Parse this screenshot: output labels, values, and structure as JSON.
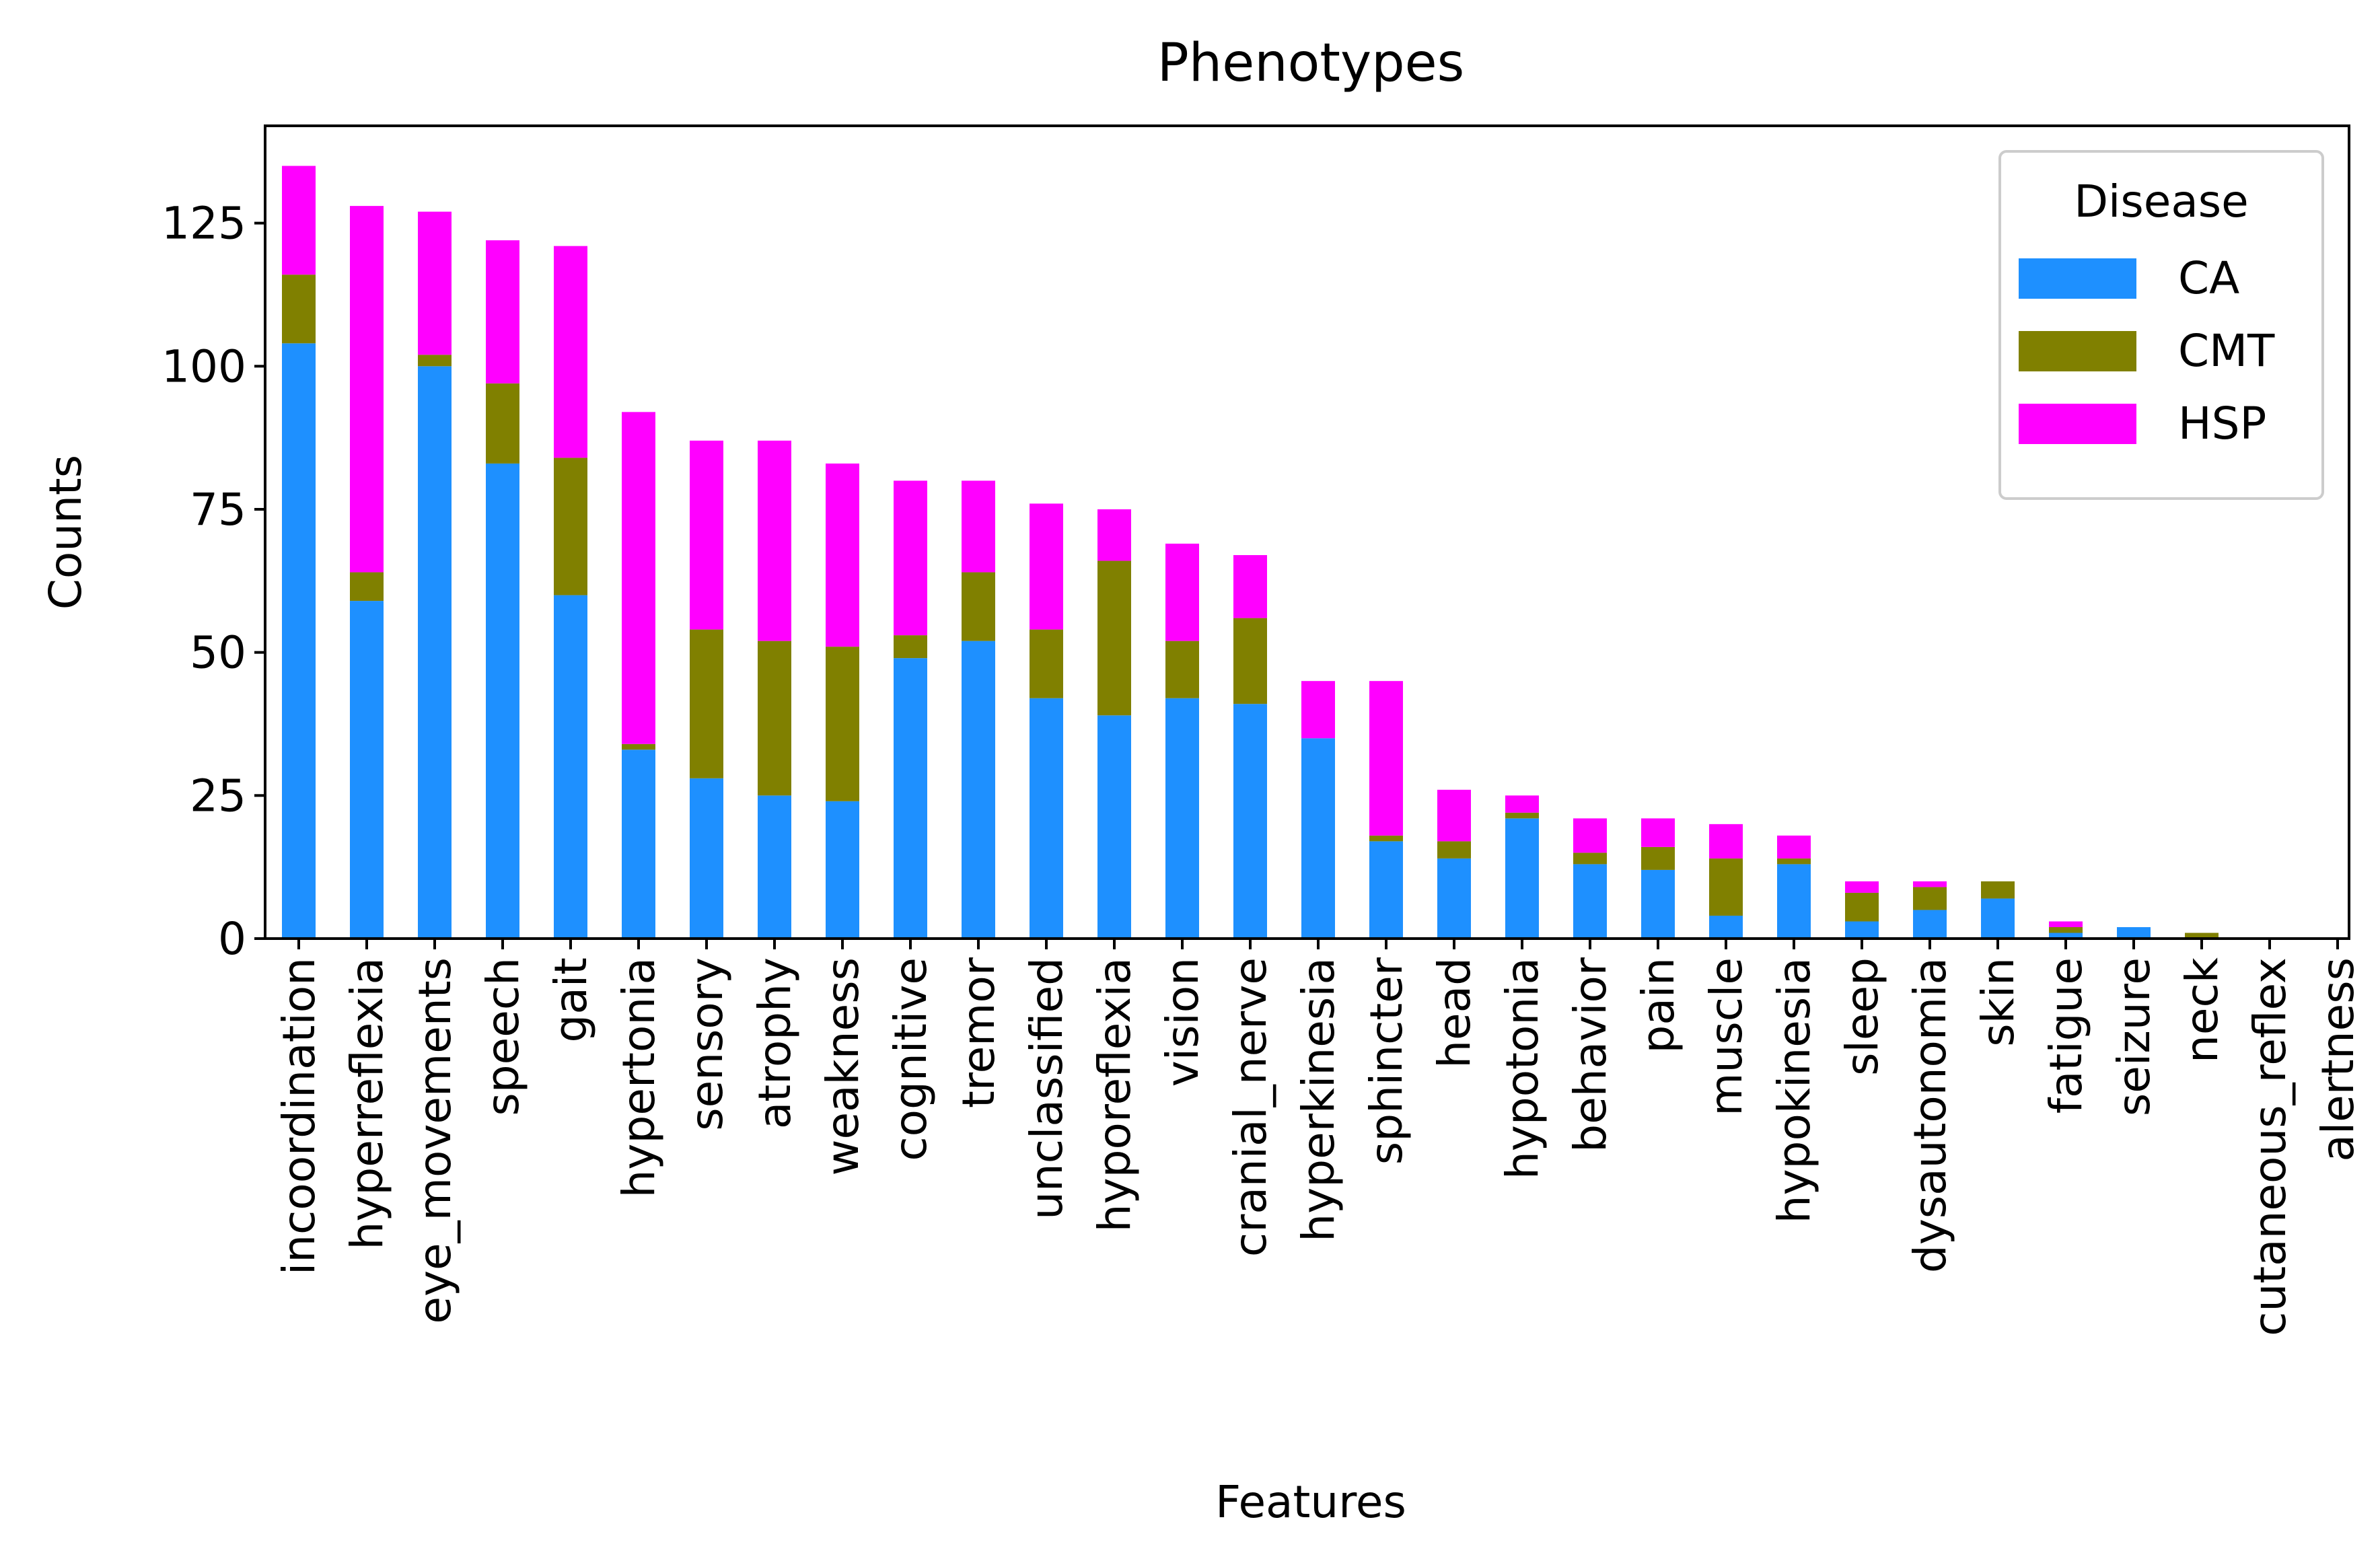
{
  "chart_data": {
    "type": "bar",
    "stacked": true,
    "title": "Phenotypes",
    "xlabel": "Features",
    "ylabel": "Counts",
    "ylim": [
      0,
      142
    ],
    "yticks": [
      0,
      25,
      50,
      75,
      100,
      125
    ],
    "legend": {
      "title": "Disease",
      "position": "top-right"
    },
    "categories": [
      "incoordination",
      "hyperreflexia",
      "eye_movements",
      "speech",
      "gait",
      "hypertonia",
      "sensory",
      "atrophy",
      "weakness",
      "cognitive",
      "tremor",
      "unclassified",
      "hyporeflexia",
      "vision",
      "cranial_nerve",
      "hyperkinesia",
      "sphincter",
      "head",
      "hypotonia",
      "behavior",
      "pain",
      "muscle",
      "hypokinesia",
      "sleep",
      "dysautonomia",
      "skin",
      "fatigue",
      "seizure",
      "neck",
      "cutaneous_reflex",
      "alertness"
    ],
    "series": [
      {
        "name": "CA",
        "color": "#1e90ff",
        "values": [
          104,
          59,
          100,
          83,
          60,
          33,
          28,
          25,
          24,
          49,
          52,
          42,
          39,
          42,
          41,
          35,
          17,
          14,
          21,
          13,
          12,
          4,
          13,
          3,
          5,
          7,
          1,
          2,
          0,
          0,
          0
        ]
      },
      {
        "name": "CMT",
        "color": "#808000",
        "values": [
          12,
          5,
          2,
          14,
          24,
          1,
          26,
          27,
          27,
          4,
          12,
          12,
          27,
          10,
          15,
          0,
          1,
          3,
          1,
          2,
          4,
          10,
          1,
          5,
          4,
          3,
          1,
          0,
          1,
          0,
          0
        ]
      },
      {
        "name": "HSP",
        "color": "#ff00ff",
        "values": [
          19,
          64,
          25,
          25,
          37,
          58,
          33,
          35,
          32,
          27,
          16,
          22,
          9,
          17,
          11,
          10,
          27,
          9,
          3,
          6,
          5,
          6,
          4,
          2,
          1,
          0,
          1,
          0,
          0,
          0,
          0
        ]
      }
    ]
  }
}
